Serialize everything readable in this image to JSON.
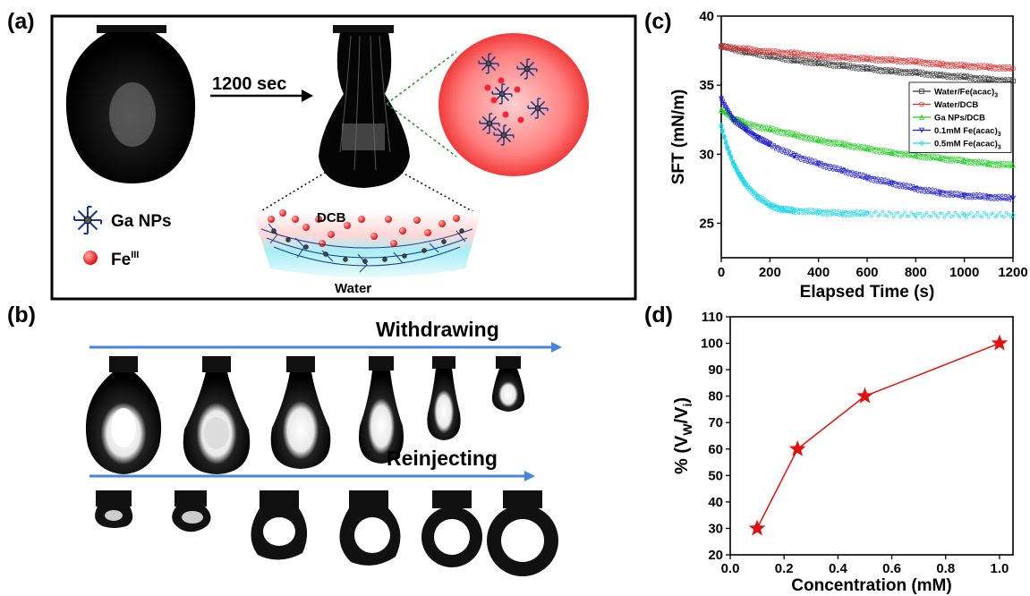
{
  "panels": {
    "a": {
      "label": "(a)",
      "arrow_text": "1200 sec",
      "legend": {
        "ga": "Ga NPs",
        "fe_base": "Fe",
        "fe_sup": "III"
      },
      "interface": {
        "top": "DCB",
        "bottom": "Water"
      }
    },
    "b": {
      "label": "(b)",
      "withdrawing": "Withdrawing",
      "reinjecting": "Reinjecting"
    },
    "c": {
      "label": "(c)"
    },
    "d": {
      "label": "(d)"
    }
  },
  "colors": {
    "water_fe": "#333333",
    "water_dcb": "#e03030",
    "ga_dcb": "#22cc22",
    "fe_01": "#1a1ad0",
    "fe_05": "#22d8e8",
    "star": "#e01010",
    "arrow_blue": "#4a86d8",
    "fe_particle": "#f03030",
    "ga_network": "#1a3a8a"
  },
  "chart_data": [
    {
      "type": "scatter",
      "panel": "c",
      "xlabel": "Elapsed Time (s)",
      "ylabel": "SFT (mN/m)",
      "xlim": [
        0,
        1200
      ],
      "ylim": [
        22.5,
        40
      ],
      "xticks": [
        0,
        200,
        400,
        600,
        800,
        1000,
        1200
      ],
      "yticks": [
        25,
        30,
        35,
        40
      ],
      "legend_position": "top-right",
      "series": [
        {
          "name": "Water/Fe(acac)",
          "sub": "3",
          "color_key": "water_fe",
          "marker": "square",
          "x": [
            0,
            100,
            200,
            300,
            400,
            500,
            600,
            700,
            800,
            900,
            1000,
            1100,
            1200
          ],
          "y": [
            37.8,
            37.4,
            37.1,
            36.8,
            36.6,
            36.4,
            36.2,
            36.0,
            35.9,
            35.7,
            35.6,
            35.4,
            35.3
          ]
        },
        {
          "name": "Water/DCB",
          "sub": "",
          "color_key": "water_dcb",
          "marker": "circle",
          "x": [
            0,
            100,
            200,
            300,
            400,
            500,
            600,
            700,
            800,
            900,
            1000,
            1100,
            1200
          ],
          "y": [
            37.8,
            37.6,
            37.4,
            37.3,
            37.1,
            37.0,
            36.9,
            36.8,
            36.7,
            36.5,
            36.4,
            36.3,
            36.2
          ]
        },
        {
          "name": "Ga NPs/DCB",
          "sub": "",
          "color_key": "ga_dcb",
          "marker": "triangle-up",
          "x": [
            0,
            50,
            100,
            200,
            300,
            400,
            500,
            600,
            700,
            800,
            900,
            1000,
            1100,
            1200
          ],
          "y": [
            33.2,
            32.6,
            32.2,
            31.8,
            31.4,
            31.0,
            30.7,
            30.4,
            30.1,
            29.9,
            29.7,
            29.5,
            29.3,
            29.2
          ]
        },
        {
          "name": "0.1mM Fe(acac)",
          "sub": "3",
          "color_key": "fe_01",
          "marker": "triangle-down",
          "x": [
            0,
            50,
            100,
            150,
            200,
            300,
            400,
            500,
            600,
            700,
            800,
            900,
            1000,
            1100,
            1200
          ],
          "y": [
            34.0,
            32.5,
            31.8,
            31.2,
            30.7,
            29.9,
            29.3,
            28.8,
            28.3,
            27.9,
            27.5,
            27.2,
            27.0,
            26.9,
            26.8
          ]
        },
        {
          "name": "0.5mM Fe(acac)",
          "sub": "3",
          "color_key": "fe_05",
          "marker": "diamond",
          "x": [
            0,
            25,
            50,
            75,
            100,
            150,
            200,
            250,
            300,
            400,
            500,
            600,
            800,
            1000,
            1200
          ],
          "y": [
            32.0,
            30.5,
            29.3,
            28.5,
            27.8,
            26.9,
            26.3,
            26.0,
            25.9,
            25.8,
            25.7,
            25.7,
            25.6,
            25.6,
            25.6
          ]
        }
      ]
    },
    {
      "type": "line",
      "panel": "d",
      "xlabel": "Concentration (mM)",
      "ylabel": "% (V",
      "ylabel_sub1": "W",
      "ylabel_mid": "/V",
      "ylabel_sub2": "i",
      "ylabel_end": ")",
      "xlim": [
        0,
        1.05
      ],
      "ylim": [
        20,
        110
      ],
      "xticks": [
        "0.0",
        "0.2",
        "0.4",
        "0.6",
        "0.8",
        "1.0"
      ],
      "yticks": [
        "20",
        "30",
        "40",
        "50",
        "60",
        "70",
        "80",
        "90",
        "100",
        "110"
      ],
      "x": [
        0.1,
        0.25,
        0.5,
        1.0
      ],
      "y": [
        30,
        60,
        80,
        100
      ],
      "marker": "star"
    }
  ]
}
